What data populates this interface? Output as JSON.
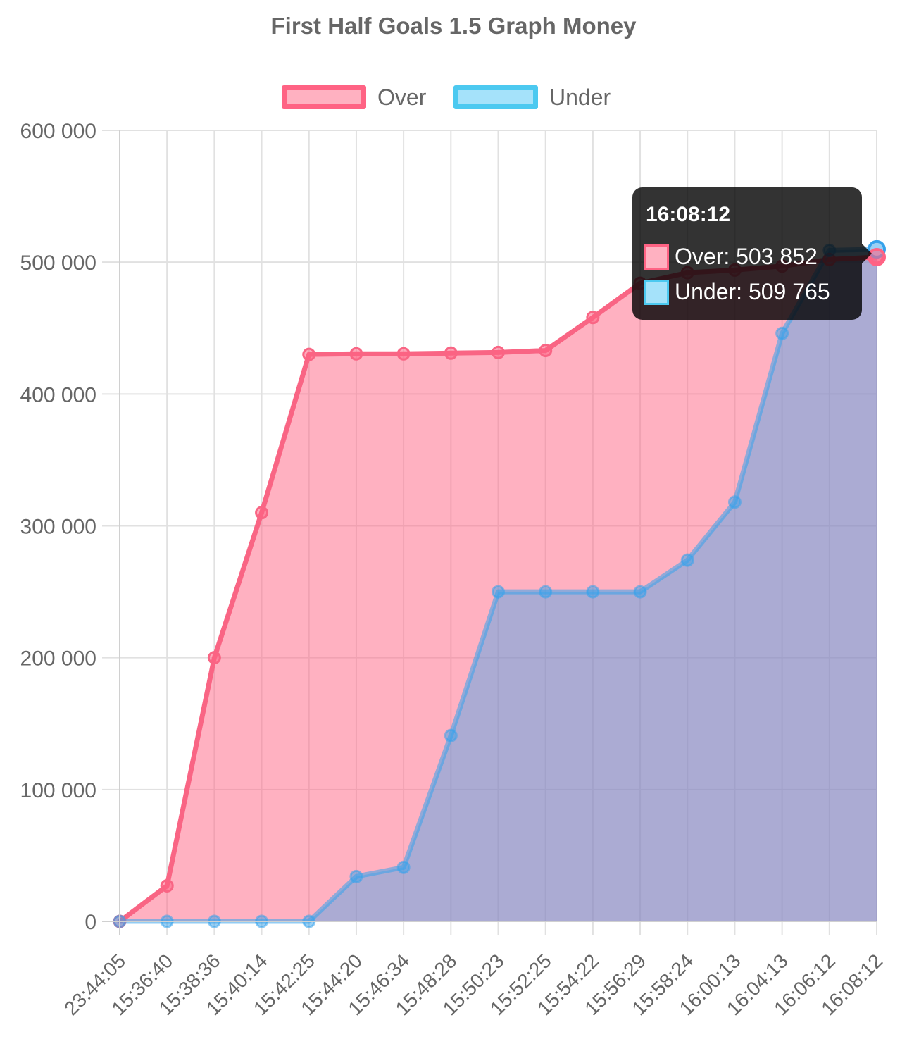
{
  "chart_data": {
    "type": "area",
    "title": "First Half Goals 1.5 Graph Money",
    "categories": [
      "23:44:05",
      "15:36:40",
      "15:38:36",
      "15:40:14",
      "15:42:25",
      "15:44:20",
      "15:46:34",
      "15:48:28",
      "15:50:23",
      "15:52:25",
      "15:54:22",
      "15:56:29",
      "15:58:24",
      "16:00:13",
      "16:04:13",
      "16:06:12",
      "16:08:12"
    ],
    "series": [
      {
        "name": "Over",
        "values": [
          0,
          27000,
          200000,
          310000,
          430000,
          430500,
          430500,
          431000,
          431500,
          433000,
          458000,
          484000,
          492000,
          494000,
          497000,
          502000,
          503852
        ],
        "border_color": "#ff6384",
        "fill_color": "rgba(255,99,132,0.5)"
      },
      {
        "name": "Under",
        "values": [
          0,
          0,
          0,
          0,
          0,
          34000,
          41000,
          141000,
          250000,
          250000,
          250000,
          250000,
          274000,
          318000,
          446000,
          509000,
          509765
        ],
        "border_color": "#36a2eb",
        "fill_color": "rgba(54,162,235,0.4)"
      }
    ],
    "y_ticks": [
      "0",
      "100 000",
      "200 000",
      "300 000",
      "400 000",
      "500 000",
      "600 000"
    ],
    "ylim": [
      0,
      600000
    ],
    "grid": true,
    "legend_position": "top"
  },
  "tooltip": {
    "title": "16:08:12",
    "rows": [
      {
        "text": "Over: 503 852",
        "color_fill": "#ffb1c1",
        "color_border": "#ff6384"
      },
      {
        "text": "Under: 509 765",
        "color_fill": "#9ad0f5",
        "color_border": "#36a2eb"
      }
    ]
  }
}
